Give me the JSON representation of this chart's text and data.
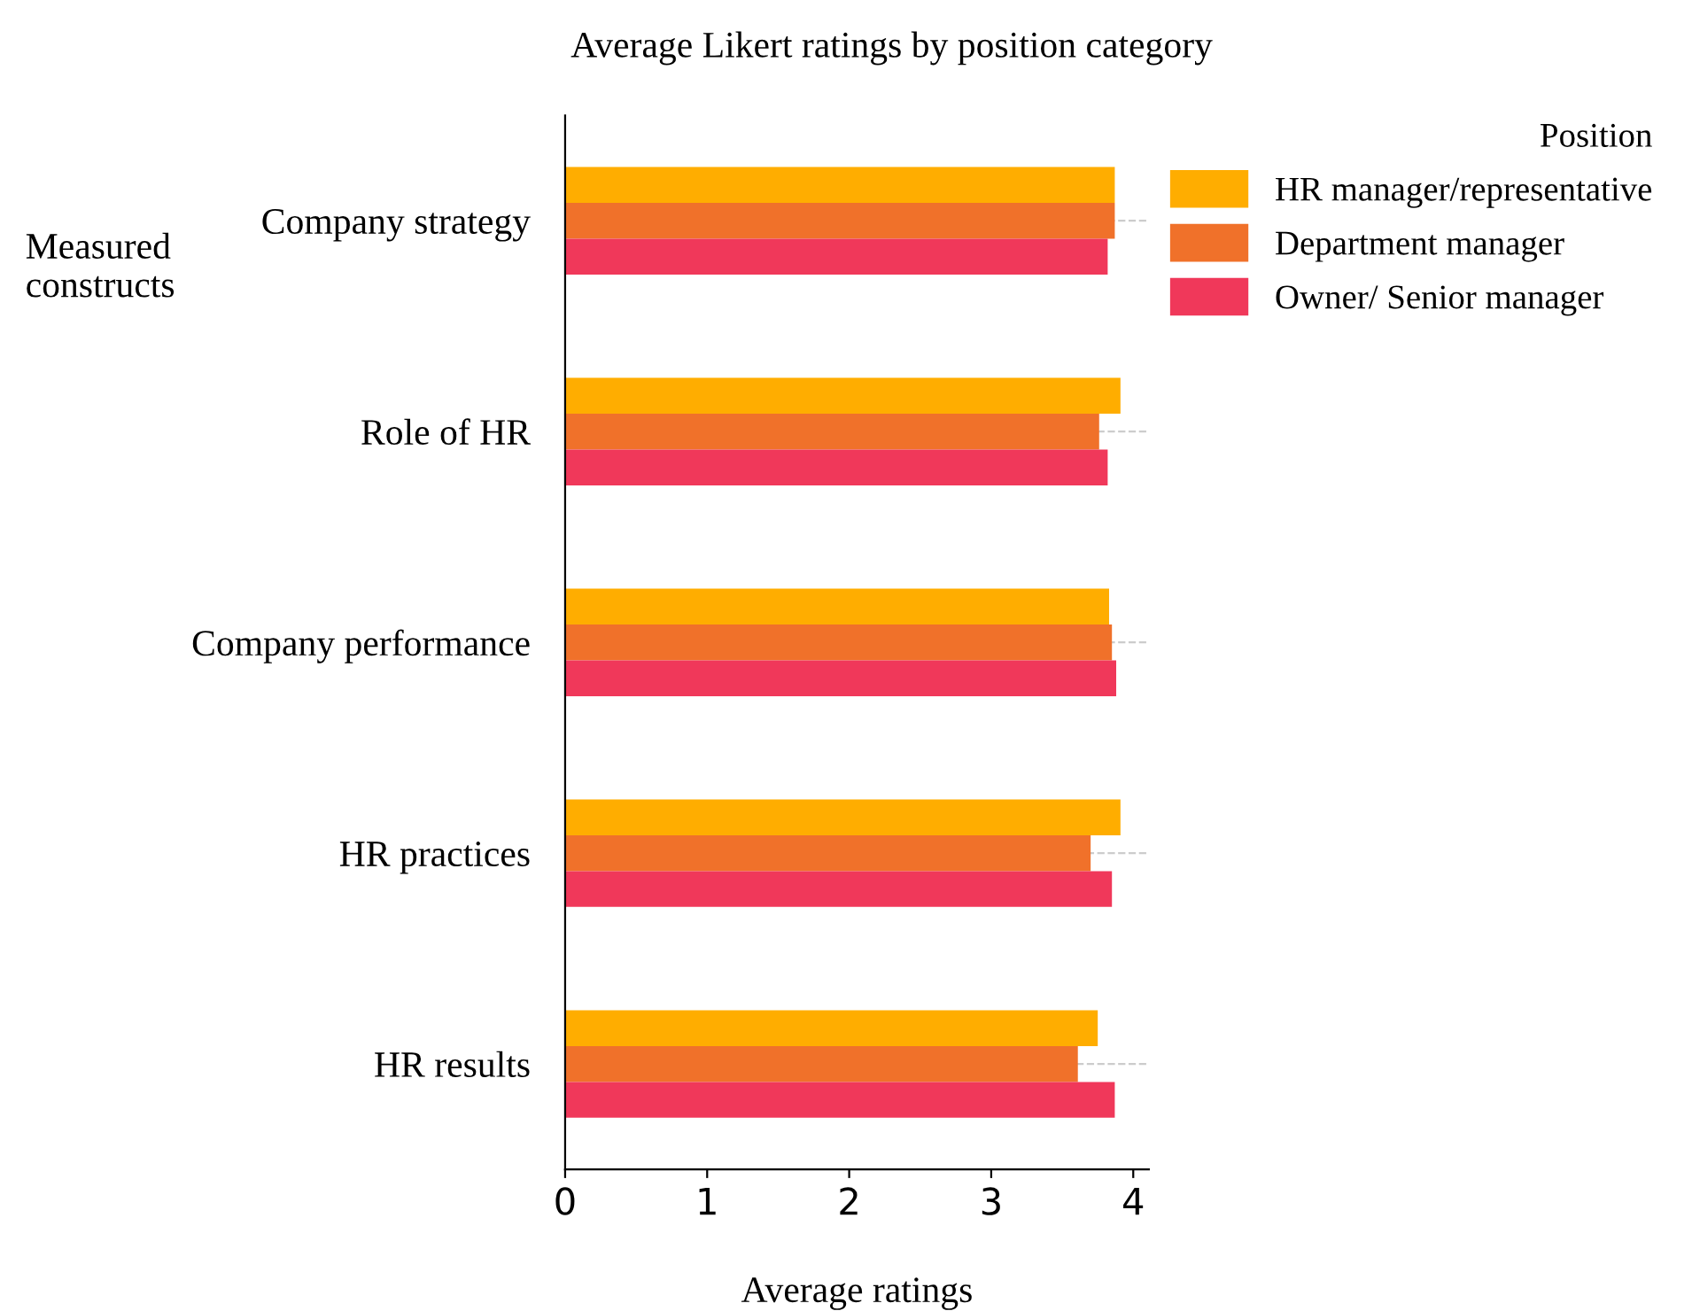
{
  "chart_data": {
    "type": "bar",
    "orientation": "horizontal",
    "title": "Average Likert ratings by position category",
    "xlabel": "Average ratings",
    "ylabel": "Measured constructs",
    "legend_title": "Position",
    "categories": [
      "Company strategy",
      "Role of HR",
      "Company performance",
      "HR practices",
      "HR results"
    ],
    "series": [
      {
        "name": "HR manager/representative",
        "color": "#ffad00",
        "values": [
          3.87,
          3.91,
          3.83,
          3.91,
          3.75
        ]
      },
      {
        "name": "Department manager",
        "color": "#f0712a",
        "values": [
          3.87,
          3.76,
          3.85,
          3.7,
          3.61
        ]
      },
      {
        "name": "Owner/ Senior manager",
        "color": "#f0385a",
        "values": [
          3.82,
          3.82,
          3.88,
          3.85,
          3.87
        ]
      }
    ],
    "xlim": [
      0,
      4.11
    ],
    "xticks": [
      0,
      1,
      2,
      3,
      4
    ],
    "grid": "y",
    "line_style": "dashed",
    "legend": "top right"
  }
}
